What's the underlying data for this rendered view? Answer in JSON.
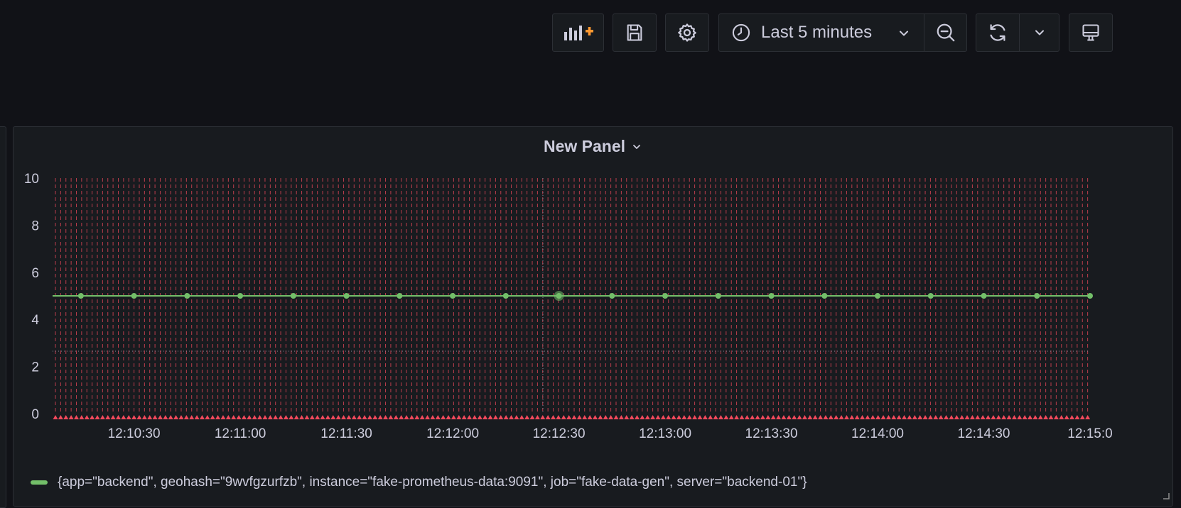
{
  "toolbar": {
    "add_panel_icon": "add-panel-icon",
    "save_icon": "save-icon",
    "settings_icon": "gear-icon",
    "time_range_label": "Last 5 minutes",
    "zoom_out_icon": "zoom-out-icon",
    "refresh_icon": "refresh-icon",
    "tv_mode_icon": "monitor-icon"
  },
  "panel": {
    "title": "New Panel"
  },
  "colors": {
    "series": "#73bf69",
    "annotation": "#f2495c",
    "accent": "#ff9830"
  },
  "chart_data": {
    "type": "line",
    "title": "New Panel",
    "xlabel": "",
    "ylabel": "",
    "ylim": [
      0,
      10
    ],
    "y_ticks": [
      "0",
      "2",
      "4",
      "6",
      "8",
      "10"
    ],
    "x_ticks": [
      "12:10:30",
      "12:11:00",
      "12:11:30",
      "12:12:00",
      "12:12:30",
      "12:13:00",
      "12:13:30",
      "12:14:00",
      "12:14:30",
      "12:15:0"
    ],
    "grid": true,
    "legend_position": "bottom-left",
    "series": [
      {
        "name": "{app=\"backend\", geohash=\"9wvfgzurfzb\", instance=\"fake-prometheus-data:9091\", job=\"fake-data-gen\", server=\"backend-01\"}",
        "x": [
          "12:10:15",
          "12:10:30",
          "12:10:45",
          "12:11:00",
          "12:11:15",
          "12:11:30",
          "12:11:45",
          "12:12:00",
          "12:12:15",
          "12:12:30",
          "12:12:45",
          "12:13:00",
          "12:13:15",
          "12:13:30",
          "12:13:45",
          "12:14:00",
          "12:14:15",
          "12:14:30",
          "12:14:45",
          "12:15:00"
        ],
        "values": [
          5,
          5,
          5,
          5,
          5,
          5,
          5,
          5,
          5,
          5,
          5,
          5,
          5,
          5,
          5,
          5,
          5,
          5,
          5,
          5
        ]
      }
    ]
  }
}
